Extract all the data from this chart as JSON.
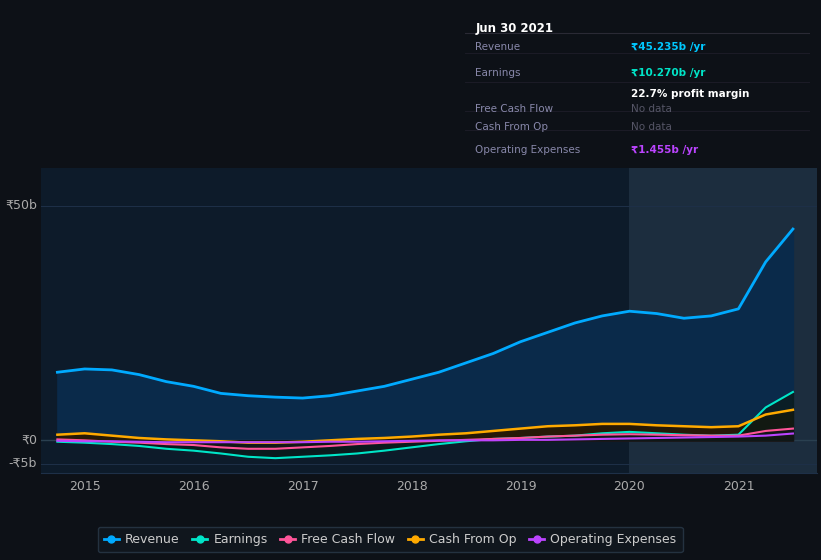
{
  "bg_color": "#0d1117",
  "plot_bg_color": "#0d1b2a",
  "grid_color": "#1e3048",
  "title_box": {
    "date": "Jun 30 2021",
    "rows": [
      {
        "label": "Revenue",
        "value": "₹45.235b /yr",
        "value_color": "#00c8ff",
        "sub": null
      },
      {
        "label": "Earnings",
        "value": "₹10.270b /yr",
        "value_color": "#00e5c8",
        "sub": "22.7% profit margin"
      },
      {
        "label": "Free Cash Flow",
        "value": "No data",
        "value_color": "#555566",
        "sub": null
      },
      {
        "label": "Cash From Op",
        "value": "No data",
        "value_color": "#555566",
        "sub": null
      },
      {
        "label": "Operating Expenses",
        "value": "₹1.455b /yr",
        "value_color": "#bb44ff",
        "sub": null
      }
    ]
  },
  "years": [
    2014.75,
    2015.0,
    2015.25,
    2015.5,
    2015.75,
    2016.0,
    2016.25,
    2016.5,
    2016.75,
    2017.0,
    2017.25,
    2017.5,
    2017.75,
    2018.0,
    2018.25,
    2018.5,
    2018.75,
    2019.0,
    2019.25,
    2019.5,
    2019.75,
    2020.0,
    2020.25,
    2020.5,
    2020.75,
    2021.0,
    2021.25,
    2021.5
  ],
  "revenue": [
    14.5,
    15.2,
    15.0,
    14.0,
    12.5,
    11.5,
    10.0,
    9.5,
    9.2,
    9.0,
    9.5,
    10.5,
    11.5,
    13.0,
    14.5,
    16.5,
    18.5,
    21.0,
    23.0,
    25.0,
    26.5,
    27.5,
    27.0,
    26.0,
    26.5,
    28.0,
    38.0,
    45.0
  ],
  "earnings": [
    -0.3,
    -0.5,
    -0.8,
    -1.2,
    -1.8,
    -2.2,
    -2.8,
    -3.5,
    -3.8,
    -3.5,
    -3.2,
    -2.8,
    -2.2,
    -1.5,
    -0.8,
    -0.2,
    0.3,
    0.5,
    0.8,
    1.0,
    1.5,
    1.8,
    1.5,
    1.2,
    1.0,
    1.2,
    7.0,
    10.3
  ],
  "free_cash_flow": [
    0.2,
    0.0,
    -0.3,
    -0.5,
    -0.8,
    -1.0,
    -1.5,
    -1.8,
    -1.8,
    -1.5,
    -1.2,
    -0.8,
    -0.5,
    -0.3,
    -0.1,
    0.1,
    0.3,
    0.5,
    0.8,
    1.0,
    1.2,
    1.3,
    1.2,
    1.1,
    1.0,
    1.0,
    2.0,
    2.5
  ],
  "cash_from_op": [
    1.2,
    1.5,
    1.0,
    0.5,
    0.2,
    0.0,
    -0.2,
    -0.5,
    -0.5,
    -0.3,
    0.0,
    0.3,
    0.5,
    0.8,
    1.2,
    1.5,
    2.0,
    2.5,
    3.0,
    3.2,
    3.5,
    3.5,
    3.2,
    3.0,
    2.8,
    3.0,
    5.5,
    6.5
  ],
  "operating_expenses": [
    -0.1,
    -0.2,
    -0.2,
    -0.3,
    -0.4,
    -0.4,
    -0.4,
    -0.4,
    -0.4,
    -0.4,
    -0.3,
    -0.3,
    -0.2,
    -0.1,
    0.0,
    0.0,
    0.0,
    0.1,
    0.1,
    0.2,
    0.3,
    0.4,
    0.5,
    0.6,
    0.7,
    0.8,
    1.0,
    1.45
  ],
  "revenue_color": "#00aaff",
  "earnings_color": "#00e5c8",
  "free_cash_flow_color": "#ff5599",
  "cash_from_op_color": "#ffaa00",
  "operating_expenses_color": "#bb44ff",
  "ylim": [
    -7,
    58
  ],
  "xlim": [
    2014.6,
    2021.72
  ],
  "xticks": [
    2015,
    2016,
    2017,
    2018,
    2019,
    2020,
    2021
  ],
  "legend_items": [
    {
      "label": "Revenue",
      "color": "#00aaff"
    },
    {
      "label": "Earnings",
      "color": "#00e5c8"
    },
    {
      "label": "Free Cash Flow",
      "color": "#ff5599"
    },
    {
      "label": "Cash From Op",
      "color": "#ffaa00"
    },
    {
      "label": "Operating Expenses",
      "color": "#bb44ff"
    }
  ],
  "highlight_x_start": 2020.0,
  "highlight_x_end": 2021.72,
  "highlight_color": "#1c2d3e"
}
